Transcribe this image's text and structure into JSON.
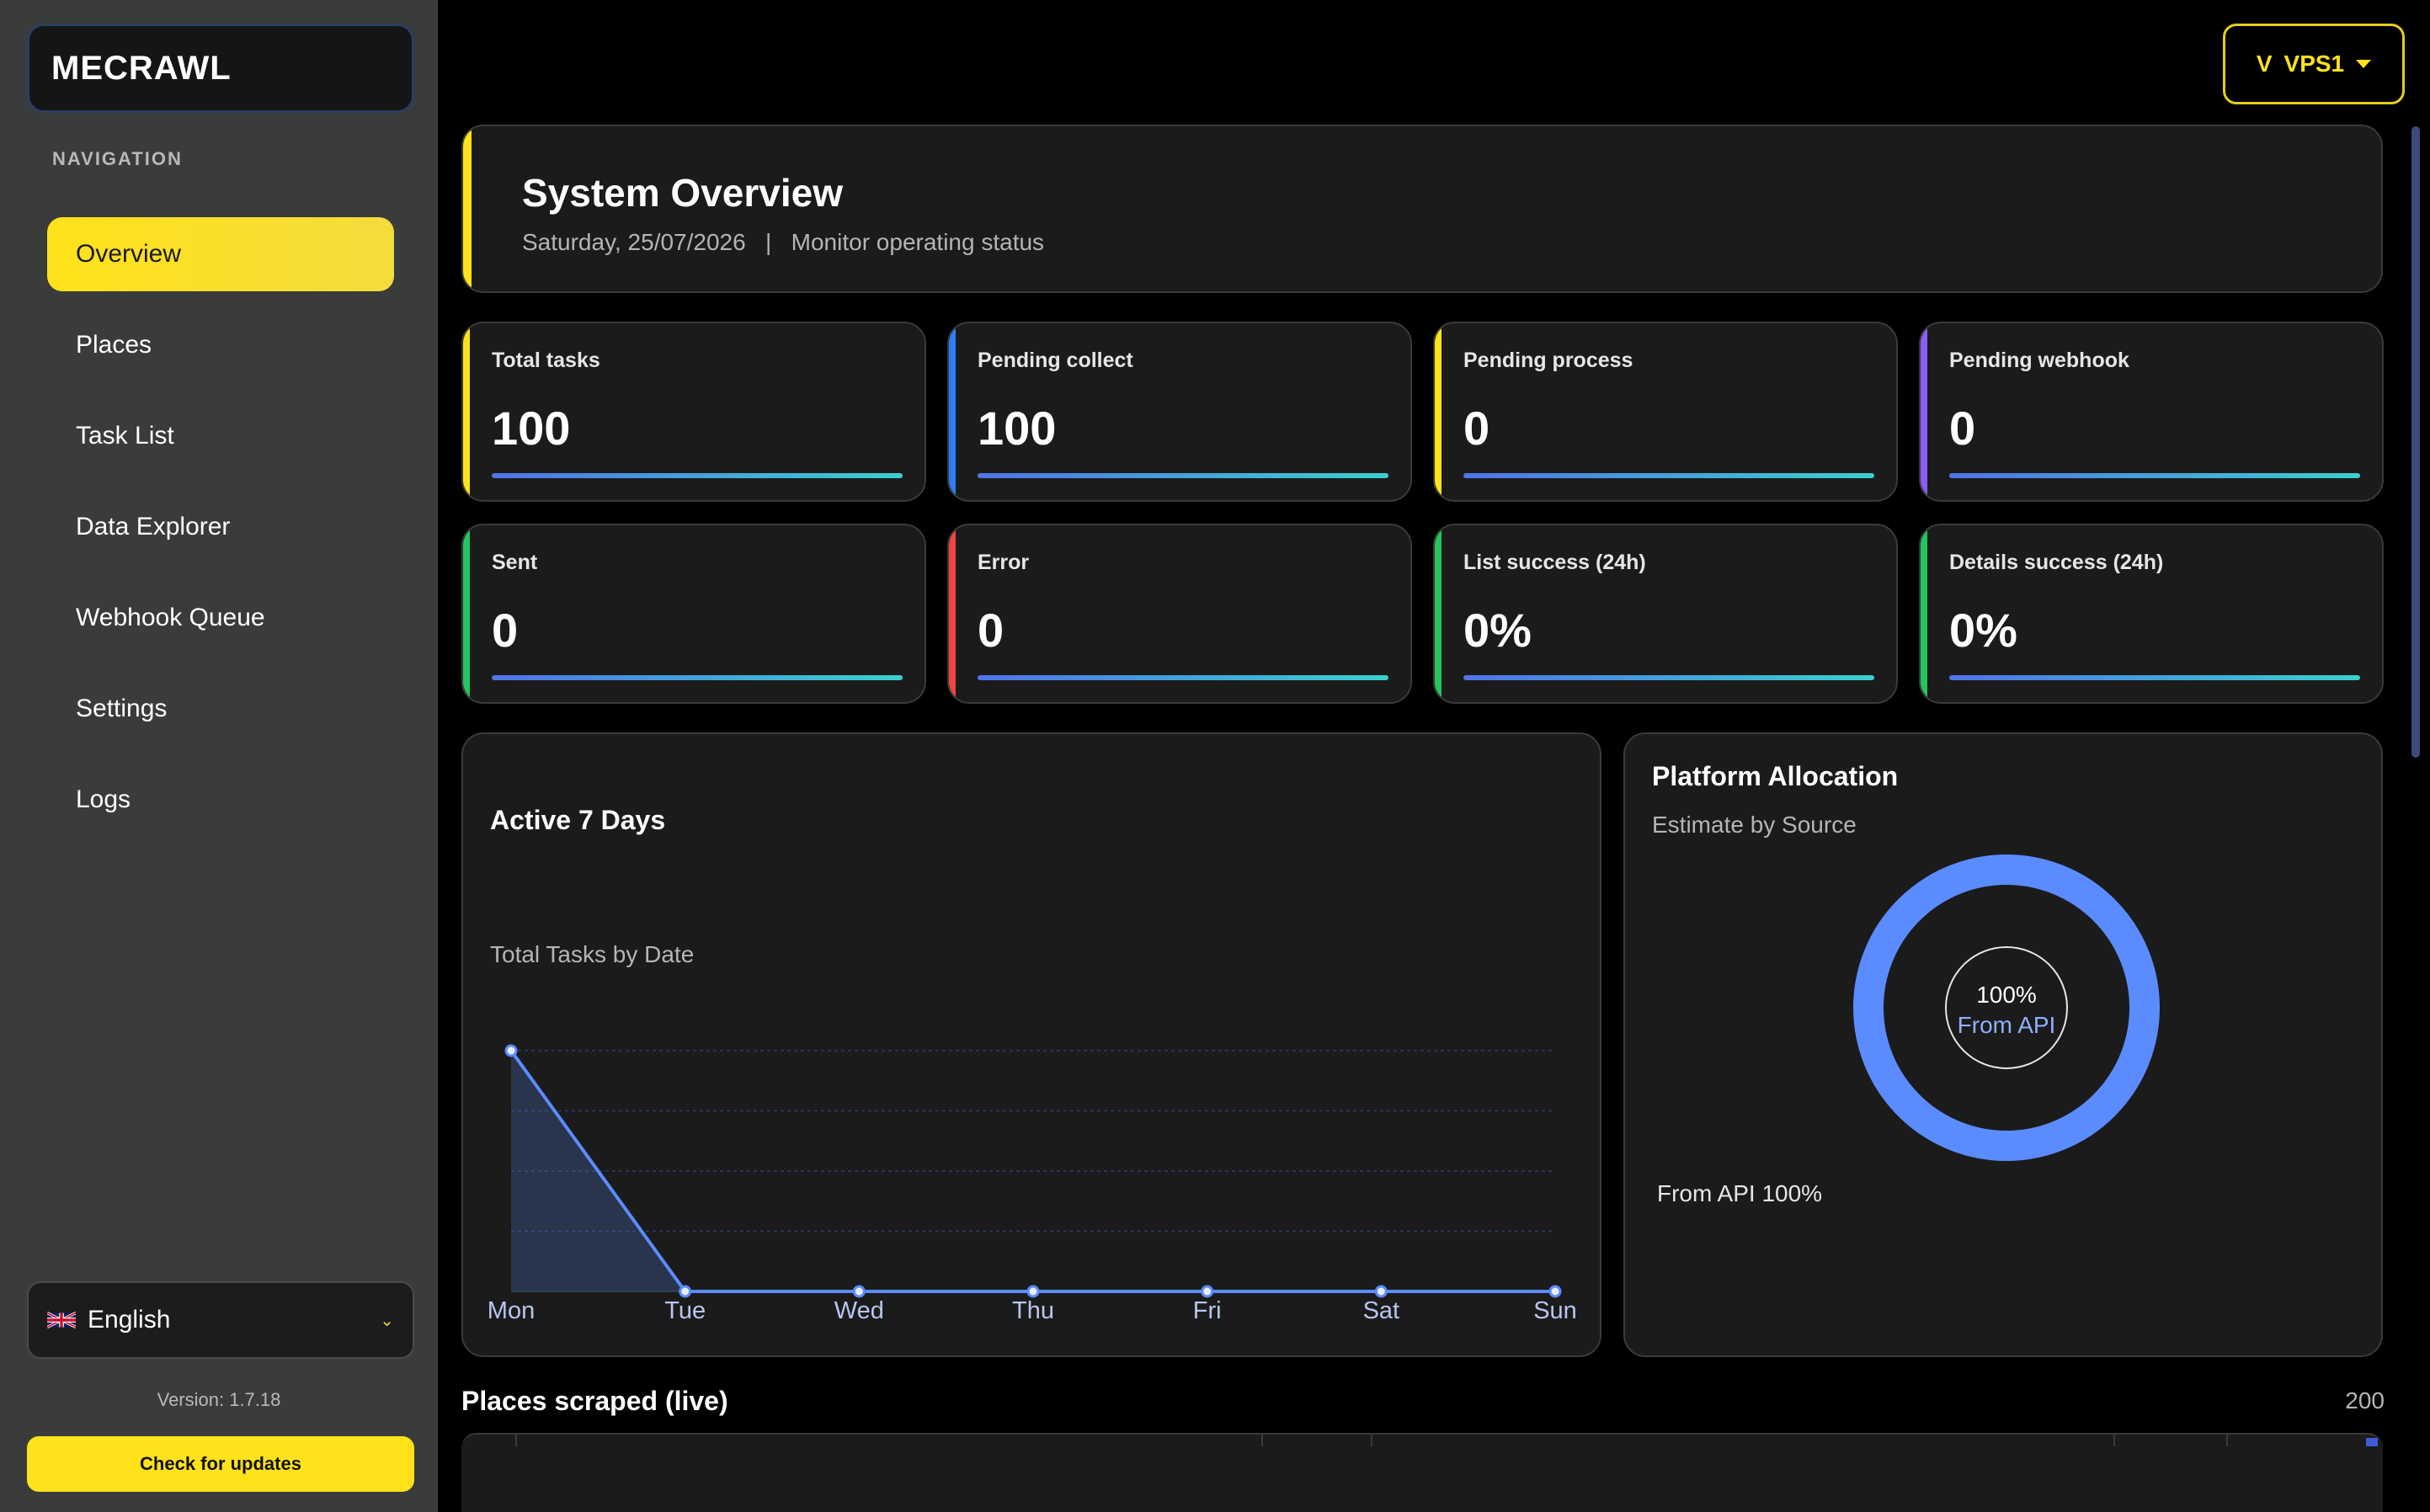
{
  "app": {
    "brand": "MECRAWL"
  },
  "sidebar": {
    "heading": "NAVIGATION",
    "items": [
      {
        "label": "Overview",
        "active": true
      },
      {
        "label": "Places",
        "active": false
      },
      {
        "label": "Task List",
        "active": false
      },
      {
        "label": "Data Explorer",
        "active": false
      },
      {
        "label": "Webhook Queue",
        "active": false
      },
      {
        "label": "Settings",
        "active": false
      },
      {
        "label": "Logs",
        "active": false
      }
    ],
    "language": "English",
    "language_icon": "uk-flag-icon",
    "version": "Version: 1.7.18",
    "update_button": "Check for updates"
  },
  "server_selector": {
    "prefix": "V",
    "value": "VPS1"
  },
  "overview": {
    "title": "System Overview",
    "date": "Saturday, 25/07/2026",
    "separator": "|",
    "subtitle": "Monitor operating status"
  },
  "stats": [
    {
      "label": "Total tasks",
      "value": "100",
      "accent": "#ffe21a"
    },
    {
      "label": "Pending collect",
      "value": "100",
      "accent": "#2f7cf6"
    },
    {
      "label": "Pending process",
      "value": "0",
      "accent": "#ffe21a"
    },
    {
      "label": "Pending webhook",
      "value": "0",
      "accent": "#8b5cf6"
    },
    {
      "label": "Sent",
      "value": "0",
      "accent": "#22c55e"
    },
    {
      "label": "Error",
      "value": "0",
      "accent": "#ef4444"
    },
    {
      "label": "List success (24h)",
      "value": "0%",
      "accent": "#22c55e"
    },
    {
      "label": "Details success (24h)",
      "value": "0%",
      "accent": "#22c55e"
    }
  ],
  "activity": {
    "title": "Active 7 Days",
    "subtitle": "Total Tasks by Date"
  },
  "allocation": {
    "title": "Platform Allocation",
    "subtitle": "Estimate by Source",
    "center_percent": "100%",
    "center_label": "From API",
    "legend": "From API 100%"
  },
  "places": {
    "title": "Places scraped (live)",
    "count": "200"
  },
  "colors": {
    "accent": "#ffe21a",
    "line": "#5b8cff",
    "donut": "#5b8cff"
  },
  "chart_data": [
    {
      "type": "area",
      "title": "Total Tasks by Date",
      "categories": [
        "Mon",
        "Tue",
        "Wed",
        "Thu",
        "Fri",
        "Sat",
        "Sun"
      ],
      "values": [
        100,
        0,
        0,
        0,
        0,
        0,
        0
      ],
      "ylim": [
        0,
        100
      ],
      "grid": true
    },
    {
      "type": "pie",
      "labels": [
        "From API"
      ],
      "values": [
        100
      ]
    }
  ]
}
